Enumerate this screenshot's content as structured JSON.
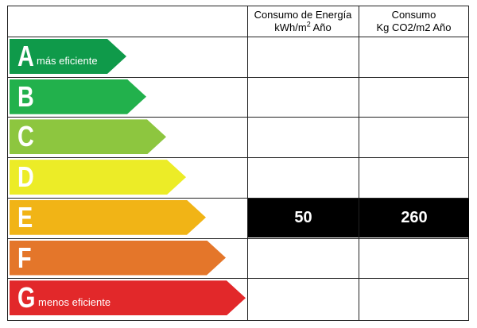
{
  "chart_data": {
    "type": "table",
    "columns": [
      {
        "line1": "Consumo de Energía",
        "line2_main": "kWh/m",
        "line2_sup": "2",
        "line2_tail": " Año"
      },
      {
        "line1": "Consumo",
        "line2_main": "Kg CO2/m2 Año",
        "line2_sup": "",
        "line2_tail": ""
      }
    ],
    "ratings": [
      {
        "letter": "A",
        "note": "más eficiente",
        "color": "#0f9a4a"
      },
      {
        "letter": "B",
        "note": "",
        "color": "#22b14c"
      },
      {
        "letter": "C",
        "note": "",
        "color": "#8dc63f"
      },
      {
        "letter": "D",
        "note": "",
        "color": "#ecec27"
      },
      {
        "letter": "E",
        "note": "",
        "color": "#f1b416"
      },
      {
        "letter": "F",
        "note": "",
        "color": "#e4762a"
      },
      {
        "letter": "G",
        "note": "menos eficiente",
        "color": "#e2282a"
      }
    ],
    "current_rating": "E",
    "values": {
      "energy_consumption": "50",
      "co2_emissions": "260"
    },
    "highlight_color": "#000000",
    "highlight_text_color": "#ffffff"
  }
}
